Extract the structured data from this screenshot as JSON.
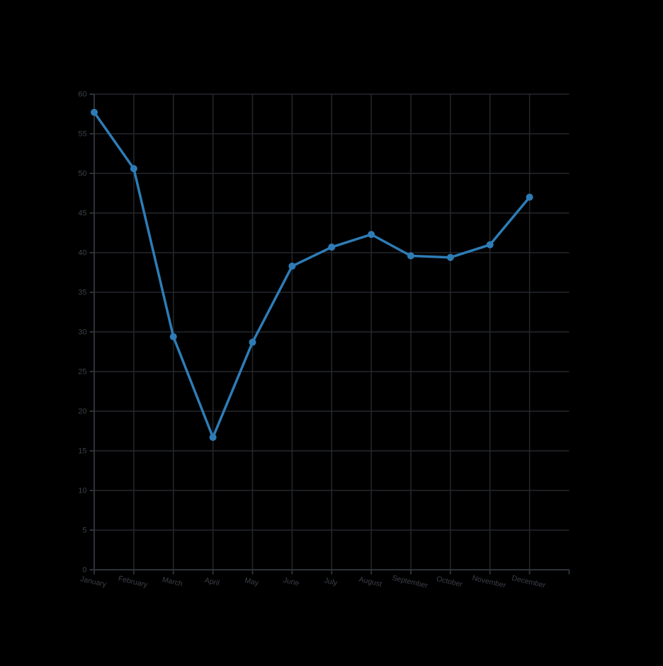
{
  "chart_data": {
    "type": "line",
    "title": "",
    "xlabel": "",
    "ylabel": "",
    "categories": [
      "January",
      "February",
      "March",
      "April",
      "May",
      "June",
      "July",
      "August",
      "September",
      "October",
      "November",
      "December"
    ],
    "values": [
      57.7,
      50.6,
      29.4,
      16.7,
      28.7,
      38.3,
      40.7,
      42.3,
      39.6,
      39.4,
      41.0,
      47.0
    ],
    "ylim": [
      0,
      60
    ],
    "ytick_step": 5,
    "ytick_labels": [
      "0",
      "5",
      "10",
      "15",
      "20",
      "25",
      "30",
      "35",
      "40",
      "45",
      "50",
      "55",
      "60"
    ],
    "grid": true,
    "legend": false,
    "x_label_rotation_deg": 13,
    "point_radius": 5,
    "line_width": 3.5,
    "colors": {
      "background": "#000000",
      "grid": "#24272c",
      "axis": "#2d3138",
      "tick_label": "#3b3f47",
      "series": "#2e7cb6"
    }
  }
}
